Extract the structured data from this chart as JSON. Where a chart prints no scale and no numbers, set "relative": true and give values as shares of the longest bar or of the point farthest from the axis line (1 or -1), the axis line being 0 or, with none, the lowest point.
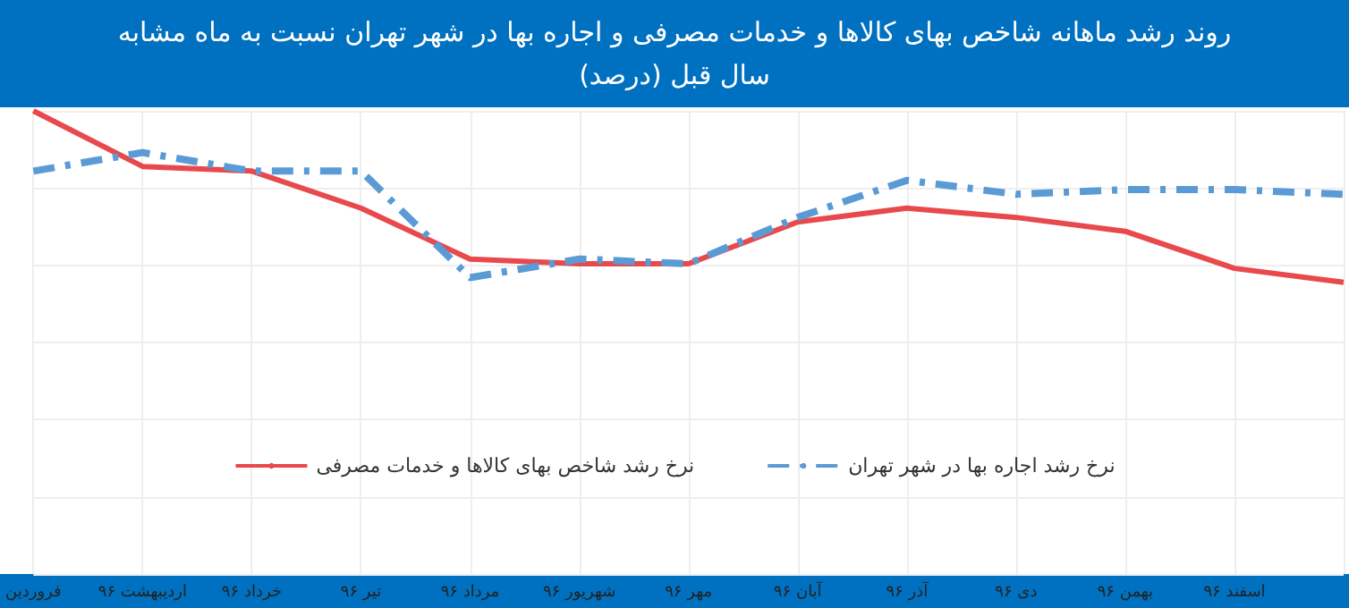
{
  "chart_data": {
    "type": "line",
    "title": "روند رشد ماهانه شاخص بهای کالاها و خدمات مصرفی و اجاره بها در شهر تهران نسبت به ماه مشابه سال قبل (درصد)",
    "relative": true,
    "categories": [
      "فروردین",
      "اردیبهشت ۹۶",
      "خرداد ۹۶",
      "تیر ۹۶",
      "مرداد ۹۶",
      "شهریور ۹۶",
      "مهر ۹۶",
      "آبان ۹۶",
      "آذر ۹۶",
      "دی ۹۶",
      "بهمن ۹۶",
      "اسفند ۹۶",
      null
    ],
    "series": [
      {
        "name": "نرخ رشد شاخص بهای کالاها و خدمات مصرفی",
        "color": "#e8494d",
        "line_style": "solid",
        "values": [
          1,
          0.88,
          0.87,
          0.79,
          0.68,
          0.67,
          0.67,
          0.76,
          0.79,
          0.77,
          0.74,
          0.66,
          0.63
        ]
      },
      {
        "name": "نرخ رشد اجاره بها در شهر تهران",
        "color": "#5b9bd5",
        "line_style": "dashed",
        "values": [
          0.87,
          0.91,
          0.87,
          0.87,
          0.64,
          0.68,
          0.67,
          0.77,
          0.85,
          0.82,
          0.83,
          0.83,
          0.82
        ]
      }
    ],
    "grid": true,
    "legend": "center",
    "marker": "none"
  }
}
